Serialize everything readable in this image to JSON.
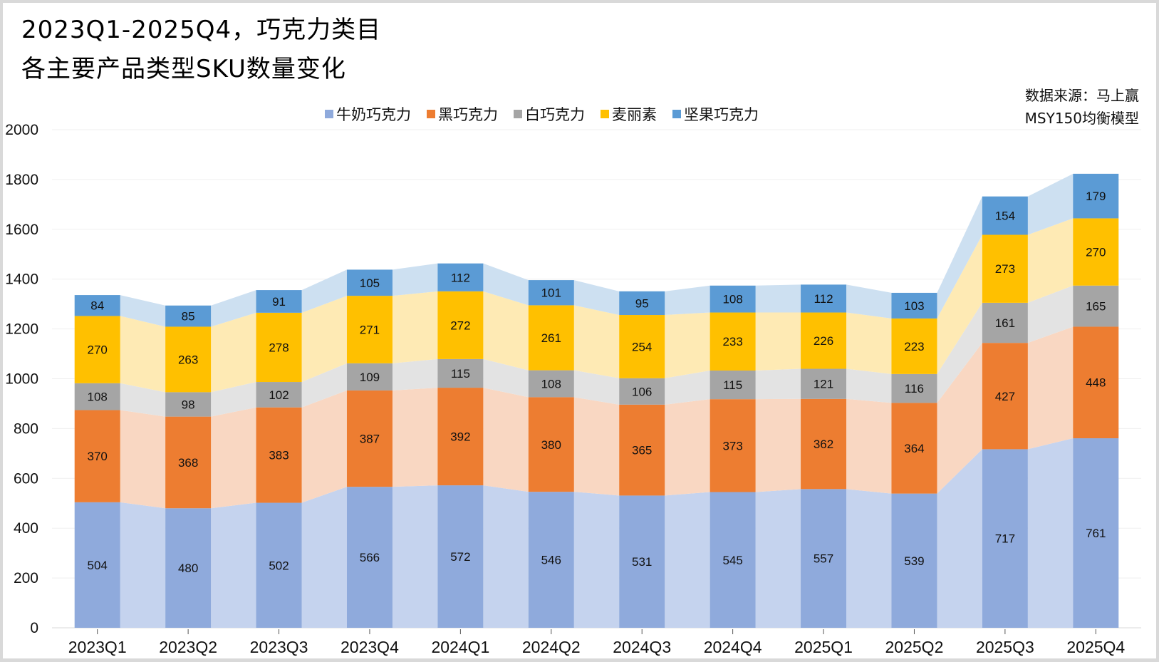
{
  "header": {
    "title_line1": "2023Q1-2025Q4，巧克力类目",
    "title_line2": "各主要产品类型SKU数量变化"
  },
  "source": {
    "line1": "数据来源：马上赢",
    "line2": "MSY150均衡模型"
  },
  "chart_data": {
    "type": "bar",
    "stacked": true,
    "title": "2023Q1-2025Q4，巧克力类目 各主要产品类型SKU数量变化",
    "xlabel": "",
    "ylabel": "",
    "ylim": [
      0,
      2000
    ],
    "yticks": [
      0,
      200,
      400,
      600,
      800,
      1000,
      1200,
      1400,
      1600,
      1800,
      2000
    ],
    "grid": true,
    "legend_position": "top-center",
    "categories": [
      "2023Q1",
      "2023Q2",
      "2023Q3",
      "2023Q4",
      "2024Q1",
      "2024Q2",
      "2024Q3",
      "2024Q4",
      "2025Q1",
      "2025Q2",
      "2025Q3",
      "2025Q4"
    ],
    "series": [
      {
        "name": "牛奶巧克力",
        "color": "#8faadc",
        "band_color": "#c5d3ee",
        "values": [
          504,
          480,
          502,
          566,
          572,
          546,
          531,
          545,
          557,
          539,
          717,
          761
        ]
      },
      {
        "name": "黑巧克力",
        "color": "#ed7d31",
        "band_color": "#f9d7c2",
        "values": [
          370,
          368,
          383,
          387,
          392,
          380,
          365,
          373,
          362,
          364,
          427,
          448
        ]
      },
      {
        "name": "白巧克力",
        "color": "#a5a5a5",
        "band_color": "#e3e3e3",
        "values": [
          108,
          98,
          102,
          109,
          115,
          108,
          106,
          115,
          121,
          116,
          161,
          165
        ]
      },
      {
        "name": "麦丽素",
        "color": "#ffc000",
        "band_color": "#feeab4",
        "values": [
          270,
          263,
          278,
          271,
          272,
          261,
          254,
          233,
          226,
          223,
          273,
          270
        ]
      },
      {
        "name": "坚果巧克力",
        "color": "#5b9bd5",
        "band_color": "#cde0f1",
        "values": [
          84,
          85,
          91,
          105,
          112,
          101,
          95,
          108,
          112,
          103,
          154,
          179
        ]
      }
    ]
  }
}
